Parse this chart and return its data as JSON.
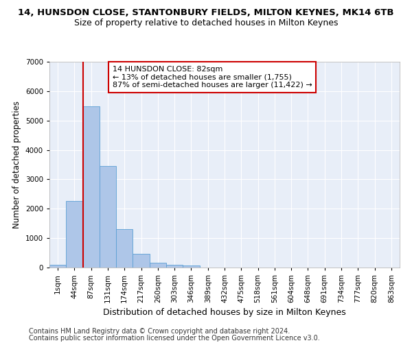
{
  "title": "14, HUNSDON CLOSE, STANTONBURY FIELDS, MILTON KEYNES, MK14 6TB",
  "subtitle": "Size of property relative to detached houses in Milton Keynes",
  "xlabel": "Distribution of detached houses by size in Milton Keynes",
  "ylabel": "Number of detached properties",
  "footer1": "Contains HM Land Registry data © Crown copyright and database right 2024.",
  "footer2": "Contains public sector information licensed under the Open Government Licence v3.0.",
  "bar_labels": [
    "1sqm",
    "44sqm",
    "87sqm",
    "131sqm",
    "174sqm",
    "217sqm",
    "260sqm",
    "303sqm",
    "346sqm",
    "389sqm",
    "432sqm",
    "475sqm",
    "518sqm",
    "561sqm",
    "604sqm",
    "648sqm",
    "691sqm",
    "734sqm",
    "777sqm",
    "820sqm",
    "863sqm"
  ],
  "bar_values": [
    90,
    2270,
    5480,
    3450,
    1310,
    470,
    170,
    90,
    60,
    0,
    0,
    0,
    0,
    0,
    0,
    0,
    0,
    0,
    0,
    0,
    0
  ],
  "bar_color": "#aec6e8",
  "bar_edge_color": "#5a9fd4",
  "vline_color": "#cc0000",
  "ylim": [
    0,
    7000
  ],
  "background_color": "#e8eef8",
  "grid_color": "#ffffff",
  "annotation_text": "14 HUNSDON CLOSE: 82sqm\n← 13% of detached houses are smaller (1,755)\n87% of semi-detached houses are larger (11,422) →",
  "title_fontsize": 9.5,
  "subtitle_fontsize": 9,
  "xlabel_fontsize": 9,
  "ylabel_fontsize": 8.5,
  "tick_fontsize": 7.5,
  "annotation_fontsize": 8,
  "footer_fontsize": 7
}
